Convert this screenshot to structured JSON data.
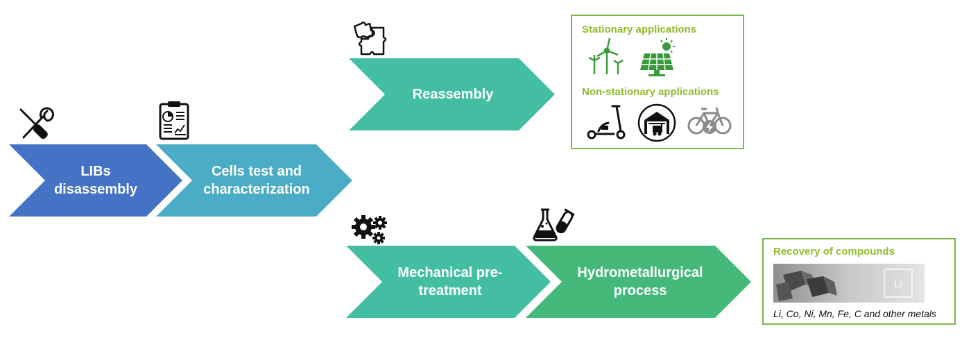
{
  "steps": {
    "disassembly": "LIBs\ndisassembly",
    "test": "Cells test and\ncharacterization",
    "reassembly": "Reassembly",
    "mechanical": "Mechanical pre-\ntreatment",
    "hydro": "Hydrometallurgical\nprocess"
  },
  "stationary_box": {
    "title": "Stationary applications",
    "subtitle": "Non-stationary applications",
    "icons": [
      "wind-turbine-icon",
      "solar-panel-icon",
      "e-scooter-icon",
      "warehouse-forklift-icon",
      "electric-bike-icon"
    ]
  },
  "recovery_box": {
    "title": "Recovery of compounds",
    "element_symbol": "Li",
    "caption": "Li, Co, Ni, Mn, Fe, C and other metals"
  },
  "colors": {
    "blue": "#4472c4",
    "teal": "#4bacc6",
    "green_teal": "#43bea3",
    "green": "#45b97a",
    "box_border": "#7ab648",
    "box_title": "#8fbc2a"
  }
}
